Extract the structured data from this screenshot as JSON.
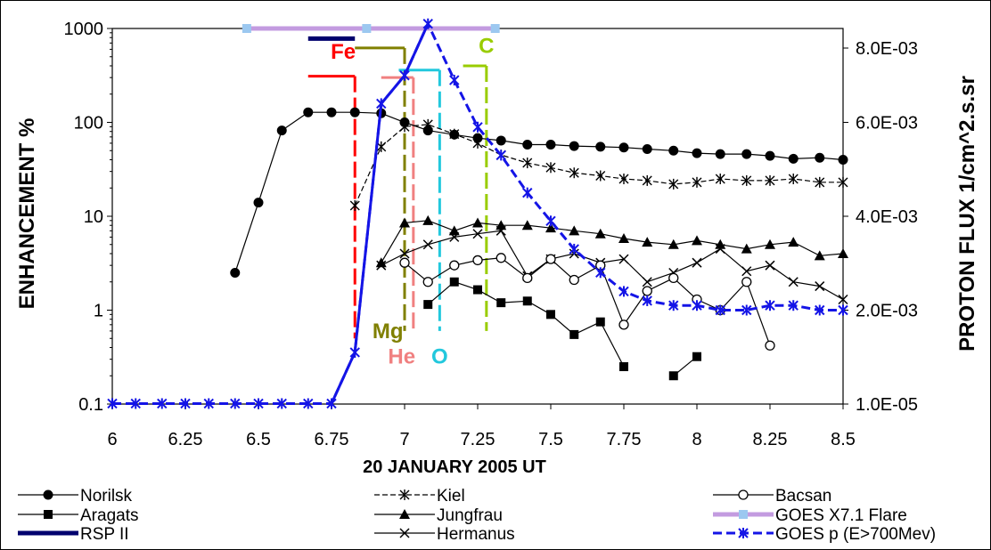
{
  "chart_data": {
    "type": "line",
    "xlabel": "20 JANUARY 2005  UT",
    "ylabel": "ENHANCEMENT  %",
    "y2label": "PROTON FLUX 1/cm^2.s.sr",
    "xlim": [
      6,
      8.5
    ],
    "x_ticks": [
      "6",
      "6.25",
      "6.5",
      "6.75",
      "7",
      "7.25",
      "7.5",
      "7.75",
      "8",
      "8.25",
      "8.5"
    ],
    "ylim": [
      0.1,
      1000
    ],
    "yscale": "log",
    "y_ticks": [
      "0.1",
      "1",
      "10",
      "100",
      "1000"
    ],
    "y2_ticks": [
      "1.0E-05",
      "2.0E-03",
      "4.0E-03",
      "6.0E-03",
      "8.0E-03"
    ],
    "grid": false,
    "legend_position": "bottom",
    "series": [
      {
        "name": "Norilsk",
        "color": "#000000",
        "marker": "filled-circle",
        "dash": "solid",
        "x": [
          6.42,
          6.5,
          6.58,
          6.67,
          6.75,
          6.83,
          6.92,
          7.0,
          7.08,
          7.17,
          7.25,
          7.33,
          7.42,
          7.5,
          7.58,
          7.67,
          7.75,
          7.83,
          7.92,
          8.0,
          8.08,
          8.17,
          8.25,
          8.33,
          8.42,
          8.5
        ],
        "y": [
          2.5,
          14,
          82,
          128,
          128,
          128,
          125,
          100,
          82,
          74,
          68,
          64,
          58,
          58,
          56,
          55,
          54,
          52,
          50,
          47,
          46,
          46,
          44,
          41,
          42,
          40
        ]
      },
      {
        "name": "Aragats",
        "color": "#000000",
        "marker": "filled-square",
        "dash": "solid",
        "x": [
          7.08,
          7.17,
          7.25,
          7.33,
          7.42,
          7.5,
          7.58,
          7.67,
          7.75,
          7.83,
          7.92,
          8.0
        ],
        "y": [
          1.15,
          2.0,
          1.65,
          1.2,
          1.25,
          0.9,
          0.55,
          0.75,
          0.25,
          null,
          0.2,
          0.32
        ]
      },
      {
        "name": "RSP II",
        "color": "#00006e",
        "marker": "none",
        "dash": "solid",
        "x_start": 6.67,
        "x_end": 6.83,
        "y": 780
      },
      {
        "name": "Kiel",
        "color": "#000000",
        "marker": "asterisk",
        "dash": "dashed",
        "x": [
          6.83,
          6.92,
          7.0,
          7.08,
          7.17,
          7.25,
          7.33,
          7.42,
          7.5,
          7.58,
          7.67,
          7.75,
          7.83,
          7.92,
          8.0,
          8.08,
          8.17,
          8.25,
          8.33,
          8.42,
          8.5
        ],
        "y": [
          13,
          55,
          90,
          95,
          75,
          60,
          45,
          37,
          33,
          29,
          27,
          25,
          24,
          22,
          23,
          25,
          24,
          24,
          25,
          23,
          23
        ]
      },
      {
        "name": "Jungfrau",
        "color": "#000000",
        "marker": "filled-triangle",
        "dash": "solid",
        "x": [
          6.92,
          7.0,
          7.08,
          7.17,
          7.25,
          7.33,
          7.42,
          7.5,
          7.58,
          7.67,
          7.75,
          7.83,
          7.92,
          8.0,
          8.08,
          8.17,
          8.25,
          8.33,
          8.42,
          8.5
        ],
        "y": [
          3.2,
          8.5,
          9.0,
          7.0,
          8.5,
          8.0,
          8.0,
          7.5,
          7.0,
          6.5,
          5.8,
          5.3,
          5.0,
          5.5,
          5.0,
          4.5,
          5.0,
          5.3,
          3.8,
          4.0
        ]
      },
      {
        "name": "Hermanus",
        "color": "#000000",
        "marker": "x",
        "dash": "solid",
        "x": [
          6.92,
          7.0,
          7.08,
          7.17,
          7.25,
          7.33,
          7.42,
          7.5,
          7.58,
          7.67,
          7.75,
          7.83,
          7.92,
          8.0,
          8.08,
          8.17,
          8.25,
          8.33,
          8.42,
          8.5
        ],
        "y": [
          3.0,
          4.0,
          5.0,
          6.0,
          6.5,
          7.0,
          2.3,
          3.5,
          4.0,
          3.2,
          3.5,
          2.0,
          2.5,
          3.2,
          4.5,
          2.6,
          3.0,
          2.0,
          1.8,
          1.3
        ]
      },
      {
        "name": "Bacsan",
        "color": "#000000",
        "marker": "open-circle",
        "dash": "solid",
        "x": [
          7.0,
          7.08,
          7.17,
          7.25,
          7.33,
          7.42,
          7.5,
          7.58,
          7.67,
          7.75,
          7.83,
          7.92,
          8.0,
          8.08,
          8.17,
          8.25
        ],
        "y": [
          3.2,
          2.0,
          3.0,
          3.4,
          3.6,
          2.2,
          3.5,
          2.1,
          3.0,
          0.7,
          1.6,
          2.2,
          1.3,
          1.0,
          2.0,
          0.42
        ]
      },
      {
        "name": "GOES X7.1 Flare",
        "color": "#c39be0",
        "marker": "light-blue-square",
        "dash": "solid",
        "x_start": 6.46,
        "x_peak": 6.87,
        "x_end": 7.31,
        "y": 1000
      },
      {
        "name": "GOES p (E>700Mev)",
        "color": "#1414e6",
        "marker": "asterisk-blue",
        "dash": "dashed",
        "axis": "right",
        "x": [
          6.0,
          6.08,
          6.17,
          6.25,
          6.33,
          6.42,
          6.5,
          6.58,
          6.67,
          6.75,
          6.83,
          6.92,
          7.0,
          7.08,
          7.17,
          7.25,
          7.33,
          7.42,
          7.5,
          7.58,
          7.67,
          7.75,
          7.83,
          7.92,
          8.0,
          8.08,
          8.17,
          8.25,
          8.33,
          8.42,
          8.5
        ],
        "y": [
          1e-05,
          1e-05,
          1e-05,
          1e-05,
          1e-05,
          1e-05,
          1e-05,
          1e-05,
          1e-05,
          1e-05,
          0.0011,
          0.0064,
          0.007,
          0.0081,
          0.0069,
          0.0059,
          0.0053,
          0.0045,
          0.0039,
          0.0033,
          0.0028,
          0.0024,
          0.0022,
          0.0021,
          0.0021,
          0.002,
          0.002,
          0.0021,
          0.0021,
          0.002,
          0.002
        ]
      }
    ],
    "annotations": [
      {
        "label": "Fe",
        "color": "#ff0000",
        "x_start": 6.67,
        "x_end": 6.83,
        "y_top": 310,
        "y_bottom": 0.5,
        "label_x": 6.79,
        "label_y": 520,
        "label_pos": "above"
      },
      {
        "label": "Mg",
        "color": "#808000",
        "x_start": 6.83,
        "x_end": 7.0,
        "y_top": 620,
        "y_bottom": 0.6,
        "label_x": 6.89,
        "label_y": 0.6,
        "label_pos": "left-bottom"
      },
      {
        "label": "He",
        "color": "#f08080",
        "x_start": 6.92,
        "x_end": 7.03,
        "y_top": 300,
        "y_bottom": 0.6,
        "label_x": 6.99,
        "label_y": 0.35,
        "label_pos": "below"
      },
      {
        "label": "O",
        "color": "#22c8dd",
        "x_start": 6.98,
        "x_end": 7.12,
        "y_top": 360,
        "y_bottom": 0.6,
        "label_x": 7.12,
        "label_y": 0.35,
        "label_pos": "below"
      },
      {
        "label": "C",
        "color": "#99cc00",
        "x_start": 7.2,
        "x_end": 7.28,
        "y_top": 400,
        "y_bottom": 0.6,
        "label_x": 7.28,
        "label_y": 600,
        "label_pos": "above"
      }
    ]
  }
}
